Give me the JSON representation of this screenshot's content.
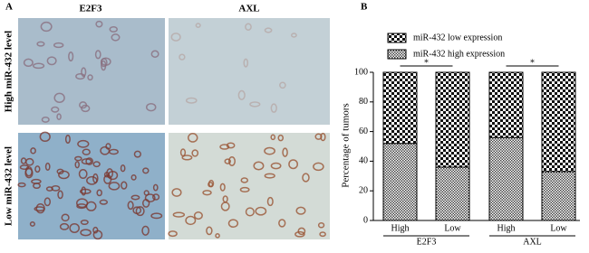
{
  "panel_a": {
    "label": "A",
    "columns": [
      "E2F3",
      "AXL"
    ],
    "rows": [
      "High miR-432 level",
      "Low miR-432 level"
    ]
  },
  "chart_data": {
    "type": "bar",
    "stacked": true,
    "panel_label": "B",
    "ylabel": "Percentage of tumors",
    "categories": [
      "High",
      "Low",
      "High",
      "Low"
    ],
    "groups": [
      "E2F3",
      "AXL"
    ],
    "annotations": [
      "*",
      "*"
    ],
    "series": [
      {
        "name": "miR-432 high expression",
        "color": "#555555",
        "values": [
          52,
          36,
          56,
          33
        ]
      },
      {
        "name": "miR-432 low expression",
        "color": "#222222",
        "values": [
          48,
          64,
          44,
          67
        ]
      }
    ],
    "ylim": [
      0,
      100
    ],
    "yticks": [
      0,
      20,
      40,
      60,
      80,
      100
    ],
    "grid": false
  }
}
